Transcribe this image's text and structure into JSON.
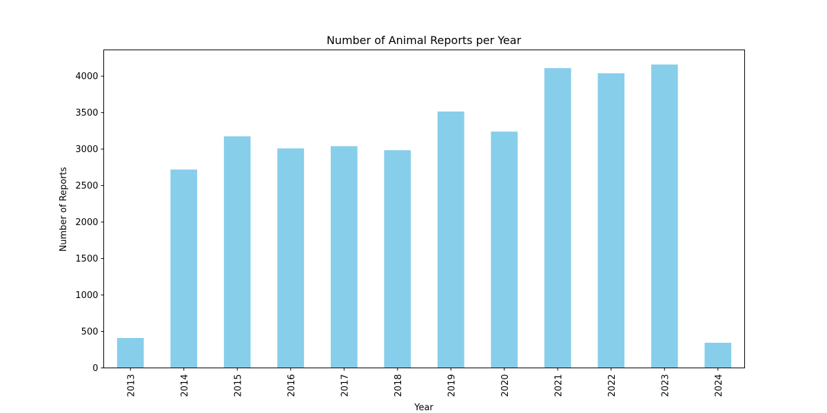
{
  "chart_data": {
    "type": "bar",
    "title": "Number of Animal Reports per Year",
    "xlabel": "Year",
    "ylabel": "Number of Reports",
    "categories": [
      "2013",
      "2014",
      "2015",
      "2016",
      "2017",
      "2018",
      "2019",
      "2020",
      "2021",
      "2022",
      "2023",
      "2024"
    ],
    "values": [
      410,
      2720,
      3175,
      3010,
      3040,
      2985,
      3515,
      3240,
      4110,
      4040,
      4160,
      345
    ],
    "ylim": [
      0,
      4360
    ],
    "yticks": [
      0,
      500,
      1000,
      1500,
      2000,
      2500,
      3000,
      3500,
      4000
    ],
    "bar_color": "#87ceeb",
    "grid": false,
    "legend": "none"
  }
}
